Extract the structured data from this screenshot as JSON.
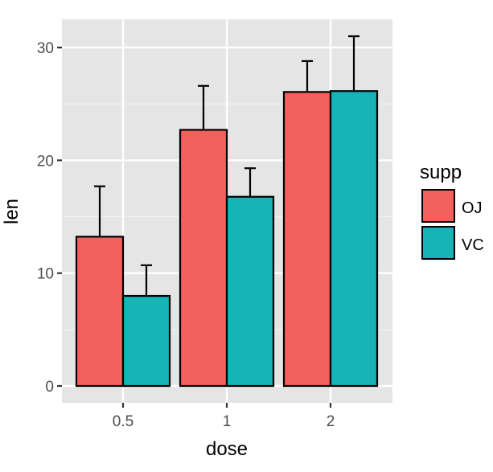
{
  "chart_data": {
    "type": "bar",
    "title": "",
    "xlabel": "dose",
    "ylabel": "len",
    "categories": [
      "0.5",
      "1",
      "2"
    ],
    "series": [
      {
        "name": "OJ",
        "color": "#F8766D",
        "values": [
          13.23,
          22.7,
          26.06
        ],
        "error_upper": [
          17.7,
          26.6,
          28.8
        ]
      },
      {
        "name": "VC",
        "color": "#00BFC4",
        "values": [
          7.98,
          16.77,
          26.14
        ],
        "error_upper": [
          10.7,
          19.3,
          31.0
        ]
      }
    ],
    "ylim": [
      0,
      32.5
    ],
    "yticks": [
      "0",
      "10",
      "20",
      "30"
    ],
    "grid": true,
    "legend": {
      "title": "supp",
      "position": "right",
      "entries": [
        "OJ",
        "VC"
      ]
    }
  },
  "colors": {
    "panel_bg": "#E5E5E5",
    "grid": "#FFFFFF",
    "oj_fill": "#F4605B",
    "vc_fill": "#17B3B7",
    "text": "#4D4D4D"
  }
}
